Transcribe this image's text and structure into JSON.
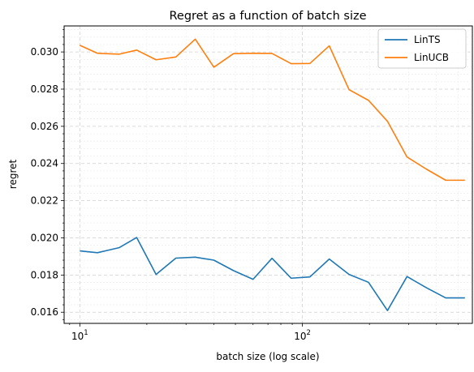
{
  "chart_data": {
    "type": "line",
    "title": "Regret as a function of batch size",
    "xlabel": "batch size (log scale)",
    "ylabel": "regret",
    "xscale": "log",
    "xlim": [
      8.5,
      580
    ],
    "ylim": [
      0.0154,
      0.0314
    ],
    "x": [
      10,
      12,
      15,
      18,
      22,
      27,
      33,
      40,
      49,
      60,
      73,
      89,
      108,
      132,
      162,
      198,
      241,
      295,
      360,
      440,
      537
    ],
    "xticks": [
      {
        "value": 10,
        "base": "10",
        "exp": "1"
      },
      {
        "value": 100,
        "base": "10",
        "exp": "2"
      }
    ],
    "yticks": [
      0.016,
      0.018,
      0.02,
      0.022,
      0.024,
      0.026,
      0.028,
      0.03
    ],
    "ytick_labels": [
      "0.016",
      "0.018",
      "0.020",
      "0.022",
      "0.024",
      "0.026",
      "0.028",
      "0.030"
    ],
    "grid": true,
    "legend_position": "top-right",
    "series": [
      {
        "name": "LinTS",
        "color": "#1f77b4",
        "values": [
          0.0193,
          0.0192,
          0.01947,
          0.02002,
          0.01803,
          0.01891,
          0.01896,
          0.0188,
          0.01824,
          0.01777,
          0.0189,
          0.01783,
          0.0179,
          0.01886,
          0.01803,
          0.01761,
          0.01609,
          0.01792,
          0.01732,
          0.01677,
          0.01677
        ]
      },
      {
        "name": "LinUCB",
        "color": "#ff7f0e",
        "values": [
          0.03036,
          0.02993,
          0.02988,
          0.0301,
          0.02958,
          0.02973,
          0.03069,
          0.02918,
          0.02991,
          0.02993,
          0.02992,
          0.02937,
          0.02938,
          0.03033,
          0.02797,
          0.0274,
          0.02627,
          0.02435,
          0.0237,
          0.0231,
          0.0231
        ]
      }
    ]
  }
}
